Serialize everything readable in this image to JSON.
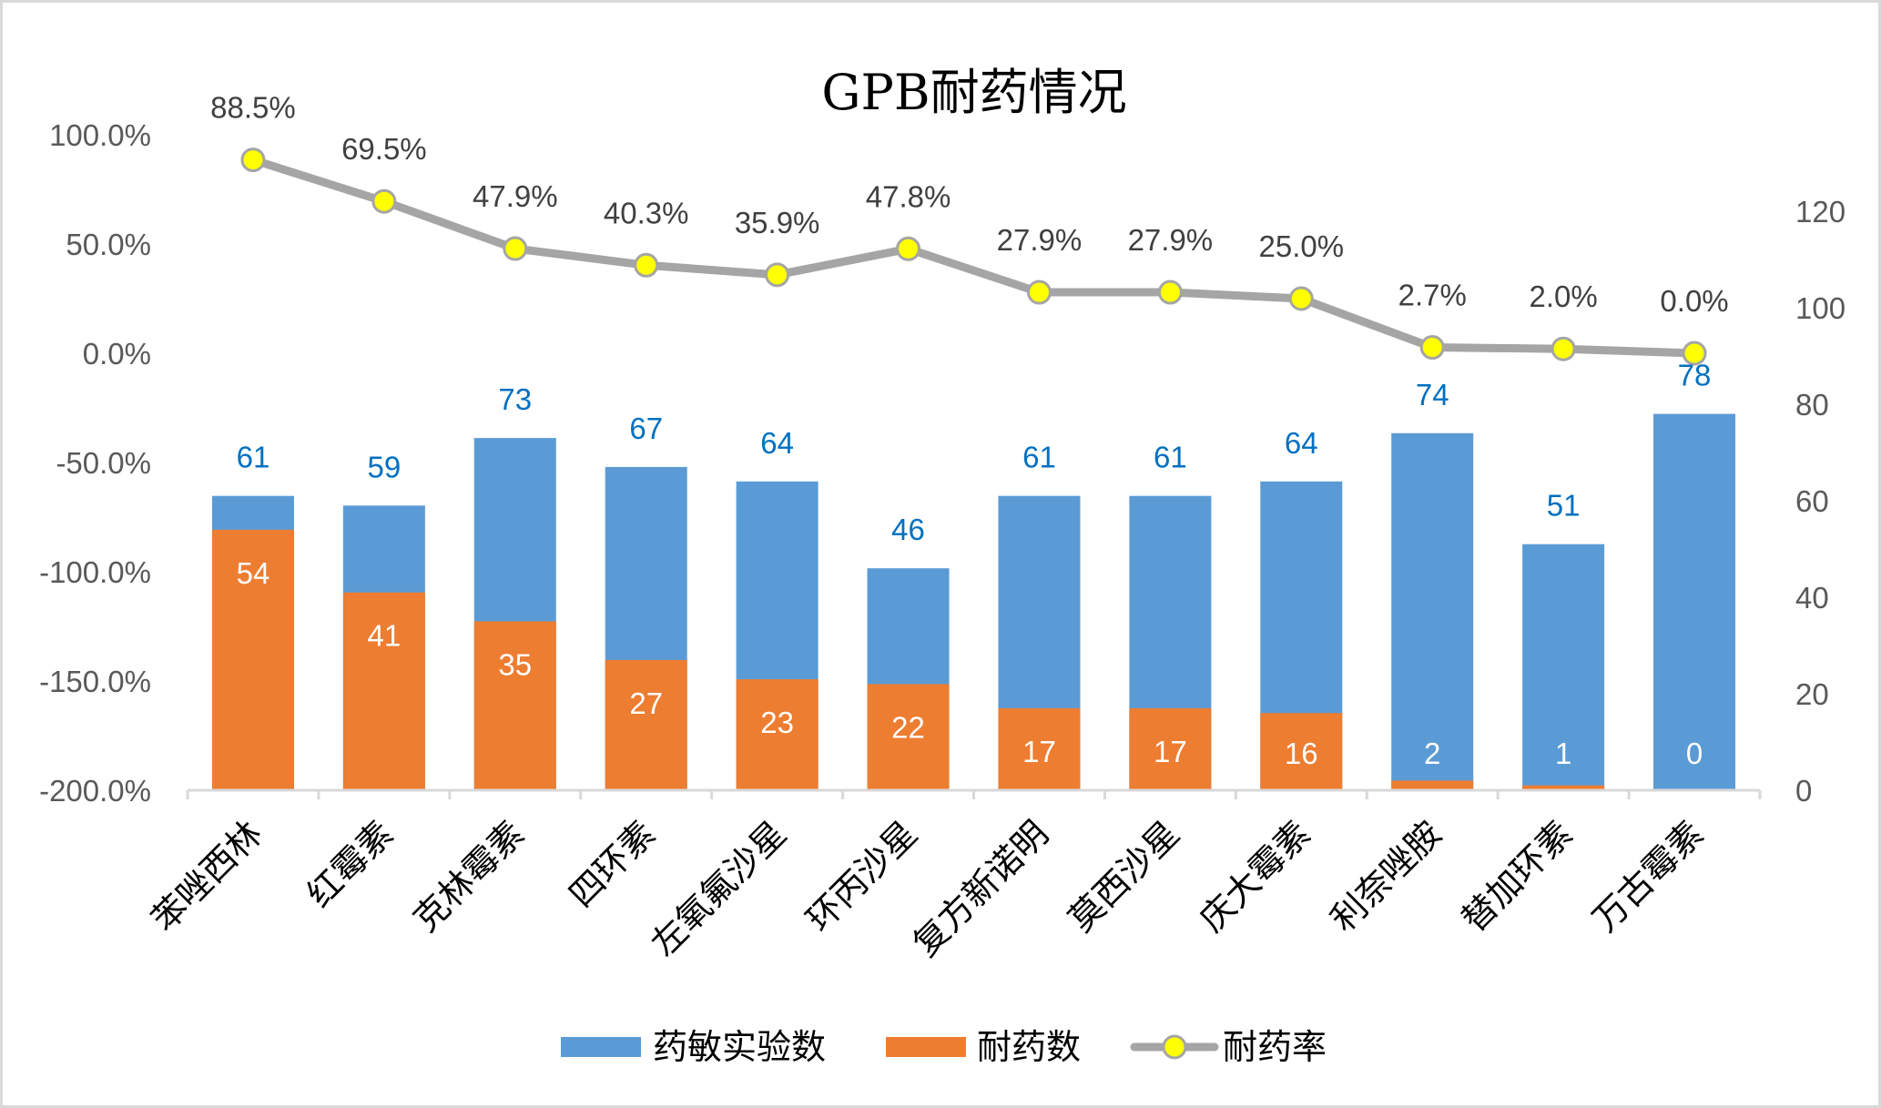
{
  "chart_data": {
    "type": "bar+line",
    "title": "GPB耐药情况",
    "categories": [
      "苯唑西林",
      "红霉素",
      "克林霉素",
      "四环素",
      "左氧氟沙星",
      "环丙沙星",
      "复方新诺明",
      "莫西沙星",
      "庆大霉素",
      "利奈唑胺",
      "替加环素",
      "万古霉素"
    ],
    "series": [
      {
        "name": "药敏实验数",
        "type": "bar",
        "axis": "right",
        "color": "#5b9bd5",
        "label_color": "#0070c0",
        "values": [
          61,
          59,
          73,
          67,
          64,
          46,
          61,
          61,
          64,
          74,
          51,
          78
        ]
      },
      {
        "name": "耐药数",
        "type": "bar",
        "axis": "right",
        "color": "#ed7d31",
        "label_color": "#ffffff",
        "values": [
          54,
          41,
          35,
          27,
          23,
          22,
          17,
          17,
          16,
          2,
          1,
          0
        ]
      },
      {
        "name": "耐药率",
        "type": "line",
        "axis": "left",
        "color": "#a5a5a5",
        "marker_color": "#ffff00",
        "label_color": "#404040",
        "values": [
          88.5,
          69.5,
          47.9,
          40.3,
          35.9,
          47.8,
          27.9,
          27.9,
          25.0,
          2.7,
          2.0,
          0.0
        ],
        "labels": [
          "88.5%",
          "69.5%",
          "47.9%",
          "40.3%",
          "35.9%",
          "47.8%",
          "27.9%",
          "27.9%",
          "25.0%",
          "2.7%",
          "2.0%",
          "0.0%"
        ]
      }
    ],
    "left_axis": {
      "ylim": [
        -200,
        100
      ],
      "tick_values": [
        100,
        50,
        0,
        -50,
        -100,
        -150,
        -200
      ],
      "tick_labels": [
        "100.0%",
        "50.0%",
        "0.0%",
        "-50.0%",
        "-100.0%",
        "-150.0%",
        "-200.0%"
      ]
    },
    "right_axis": {
      "ylim": [
        0,
        136
      ],
      "tick_values": [
        120,
        100,
        80,
        60,
        40,
        20,
        0
      ],
      "tick_labels": [
        "120",
        "100",
        "80",
        "60",
        "40",
        "20",
        "0"
      ]
    },
    "xlabel": "",
    "ylabel": "",
    "grid": false,
    "legend_position": "bottom"
  },
  "legend": {
    "items": [
      {
        "label": "药敏实验数",
        "kind": "bar",
        "color": "#5b9bd5"
      },
      {
        "label": "耐药数",
        "kind": "bar",
        "color": "#ed7d31"
      },
      {
        "label": "耐药率",
        "kind": "line",
        "color": "#a5a5a5",
        "marker_color": "#ffff00"
      }
    ]
  }
}
